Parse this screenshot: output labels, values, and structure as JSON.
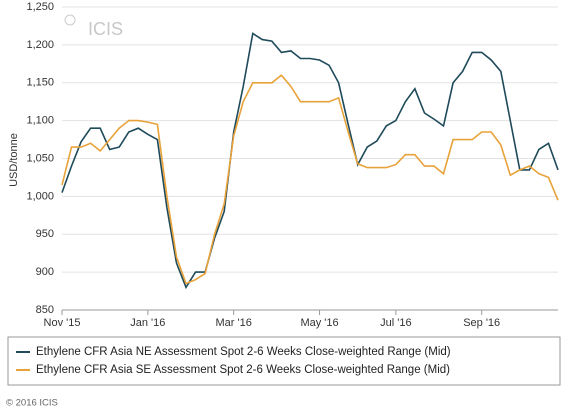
{
  "chart_data": {
    "type": "line",
    "watermark": "ICIS",
    "y_label": "USD/tonne",
    "footer": "© 2016 ICIS",
    "categories": [
      "Nov '15",
      null,
      null,
      null,
      null,
      null,
      null,
      null,
      null,
      "Jan '16",
      null,
      null,
      null,
      null,
      null,
      null,
      null,
      null,
      "Mar '16",
      null,
      null,
      null,
      null,
      null,
      null,
      null,
      null,
      "May '16",
      null,
      null,
      null,
      null,
      null,
      null,
      null,
      "Jul '16",
      null,
      null,
      null,
      null,
      null,
      null,
      null,
      null,
      "Sep '16",
      null,
      null,
      null,
      null,
      null,
      null,
      null,
      null
    ],
    "series": [
      {
        "name": "Ethylene CFR Asia NE Assessment Spot 2-6 Weeks Close-weighted Range (Mid)",
        "color": "#1e4a5a",
        "values": [
          1005,
          1040,
          1072,
          1090,
          1090,
          1062,
          1065,
          1085,
          1090,
          1082,
          1075,
          985,
          912,
          880,
          900,
          900,
          945,
          980,
          1085,
          1145,
          1215,
          1207,
          1205,
          1190,
          1192,
          1182,
          1182,
          1180,
          1173,
          1150,
          1095,
          1042,
          1065,
          1073,
          1093,
          1100,
          1125,
          1142,
          1110,
          1102,
          1093,
          1150,
          1165,
          1190,
          1190,
          1180,
          1165,
          1100,
          1035,
          1035,
          1062,
          1070,
          1035
        ]
      },
      {
        "name": "Ethylene CFR Asia SE Assessment Spot 2-6 Weeks Close-weighted Range (Mid)",
        "color": "#e8a23a",
        "values": [
          1015,
          1065,
          1065,
          1070,
          1060,
          1075,
          1090,
          1100,
          1100,
          1098,
          1095,
          1000,
          920,
          885,
          890,
          898,
          950,
          990,
          1080,
          1125,
          1150,
          1150,
          1150,
          1160,
          1145,
          1125,
          1125,
          1125,
          1125,
          1130,
          1085,
          1043,
          1038,
          1038,
          1038,
          1042,
          1055,
          1055,
          1040,
          1040,
          1030,
          1075,
          1075,
          1075,
          1085,
          1085,
          1068,
          1028,
          1035,
          1040,
          1030,
          1025,
          995
        ]
      }
    ],
    "ylim": [
      850,
      1250
    ],
    "yticks": [
      850,
      900,
      950,
      {
        "value": 1000,
        "label": "1,000"
      },
      {
        "value": 1050,
        "label": "1,050"
      },
      {
        "value": 1100,
        "label": "1,100"
      },
      {
        "value": 1150,
        "label": "1,150"
      },
      {
        "value": 1200,
        "label": "1,200"
      },
      {
        "value": 1250,
        "label": "1,250"
      }
    ],
    "grid": true
  }
}
